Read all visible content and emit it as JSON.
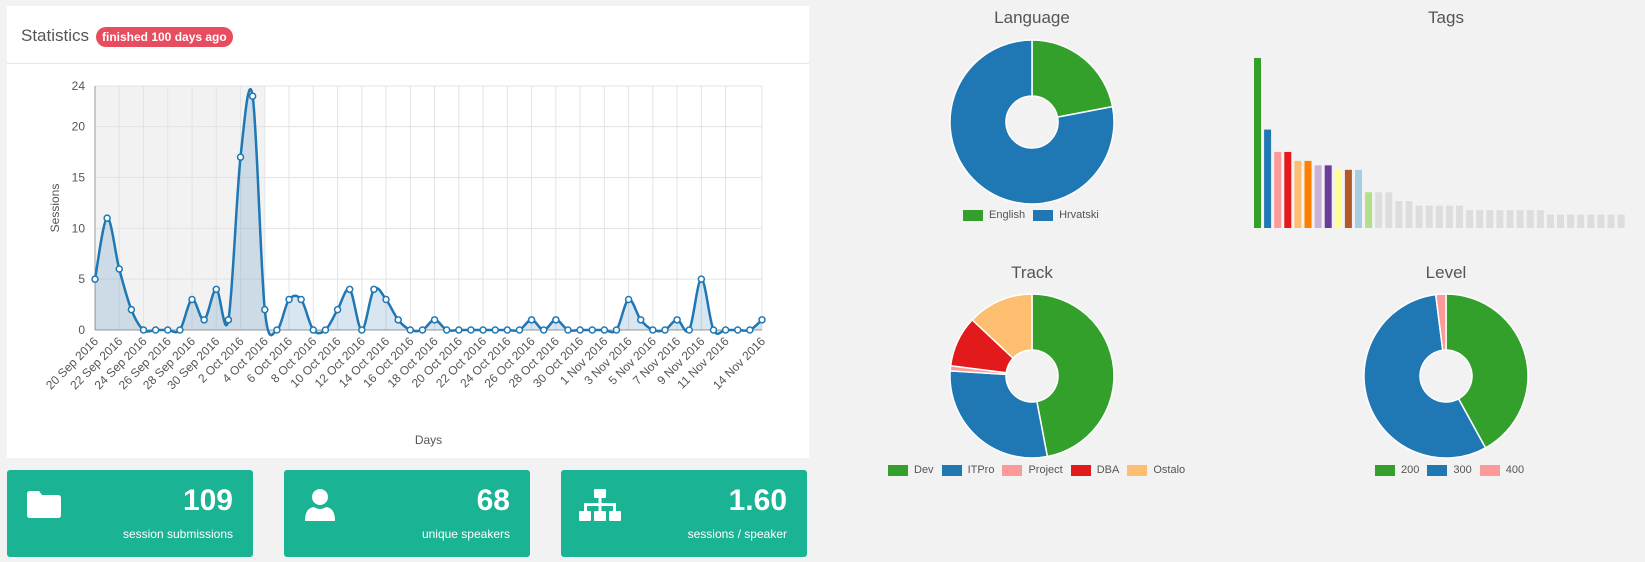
{
  "statistics": {
    "title": "Statistics",
    "badge": "finished 100 days ago",
    "chart_data": {
      "type": "line",
      "xlabel": "Days",
      "ylabel": "Sessions",
      "ylim": [
        0,
        24
      ],
      "yticks": [
        0,
        5,
        10,
        15,
        20,
        24
      ],
      "x": [
        "20 Sep 2016",
        "21 Sep 2016",
        "22 Sep 2016",
        "23 Sep 2016",
        "24 Sep 2016",
        "25 Sep 2016",
        "26 Sep 2016",
        "27 Sep 2016",
        "28 Sep 2016",
        "29 Sep 2016",
        "30 Sep 2016",
        "1 Oct 2016",
        "2 Oct 2016",
        "3 Oct 2016",
        "4 Oct 2016",
        "5 Oct 2016",
        "6 Oct 2016",
        "7 Oct 2016",
        "8 Oct 2016",
        "9 Oct 2016",
        "10 Oct 2016",
        "11 Oct 2016",
        "12 Oct 2016",
        "13 Oct 2016",
        "14 Oct 2016",
        "15 Oct 2016",
        "16 Oct 2016",
        "17 Oct 2016",
        "18 Oct 2016",
        "19 Oct 2016",
        "20 Oct 2016",
        "21 Oct 2016",
        "22 Oct 2016",
        "23 Oct 2016",
        "24 Oct 2016",
        "25 Oct 2016",
        "26 Oct 2016",
        "27 Oct 2016",
        "28 Oct 2016",
        "29 Oct 2016",
        "30 Oct 2016",
        "31 Oct 2016",
        "1 Nov 2016",
        "2 Nov 2016",
        "3 Nov 2016",
        "4 Nov 2016",
        "5 Nov 2016",
        "6 Nov 2016",
        "7 Nov 2016",
        "8 Nov 2016",
        "9 Nov 2016",
        "10 Nov 2016",
        "11 Nov 2016",
        "12 Nov 2016",
        "13 Nov 2016",
        "14 Nov 2016"
      ],
      "values": [
        5,
        11,
        6,
        2,
        0,
        0,
        0,
        0,
        3,
        1,
        4,
        1,
        17,
        23,
        2,
        0,
        3,
        3,
        0,
        0,
        2,
        4,
        0,
        4,
        3,
        1,
        0,
        0,
        1,
        0,
        0,
        0,
        0,
        0,
        0,
        0,
        1,
        0,
        1,
        0,
        0,
        0,
        0,
        0,
        3,
        1,
        0,
        0,
        1,
        0,
        5,
        0,
        0,
        0,
        0,
        1
      ],
      "tick_labels": [
        "20 Sep 2016",
        "22 Sep 2016",
        "24 Sep 2016",
        "26 Sep 2016",
        "28 Sep 2016",
        "30 Sep 2016",
        "2 Oct 2016",
        "4 Oct 2016",
        "6 Oct 2016",
        "8 Oct 2016",
        "10 Oct 2016",
        "12 Oct 2016",
        "14 Oct 2016",
        "16 Oct 2016",
        "18 Oct 2016",
        "20 Oct 2016",
        "22 Oct 2016",
        "24 Oct 2016",
        "26 Oct 2016",
        "28 Oct 2016",
        "30 Oct 2016",
        "1 Nov 2016",
        "3 Nov 2016",
        "5 Nov 2016",
        "7 Nov 2016",
        "9 Nov 2016",
        "11 Nov 2016",
        "14 Nov 2016"
      ],
      "highlight_range": [
        "20 Sep 2016",
        "4 Oct 2016"
      ],
      "line_color": "#1f77b4",
      "grid": true
    }
  },
  "stats": [
    {
      "value": "109",
      "label": "session submissions",
      "icon": "folder-icon"
    },
    {
      "value": "68",
      "label": "unique speakers",
      "icon": "user-icon"
    },
    {
      "value": "1.60",
      "label": "sessions / speaker",
      "icon": "sitemap-icon"
    }
  ],
  "language": {
    "title": "Language",
    "chart_data": {
      "type": "pie",
      "donut": true,
      "labels": [
        "English",
        "Hrvatski"
      ],
      "values": [
        22,
        78
      ],
      "colors": [
        "#33a02c",
        "#1f78b4"
      ]
    }
  },
  "tags": {
    "title": "Tags",
    "chart_data": {
      "type": "bar",
      "values": [
        38,
        22,
        17,
        17,
        15,
        15,
        14,
        14,
        13,
        13,
        13,
        8,
        8,
        8,
        6,
        6,
        5,
        5,
        5,
        5,
        5,
        4,
        4,
        4,
        4,
        4,
        4,
        4,
        4,
        3,
        3,
        3,
        3,
        3,
        3,
        3,
        3
      ],
      "colors": [
        "#33a02c",
        "#1f78b4",
        "#fb9a99",
        "#e31a1c",
        "#fdbf6f",
        "#ff7f00",
        "#cab2d6",
        "#6a3d9a",
        "#ffff99",
        "#b15928",
        "#a6cee3",
        "#b2df8a",
        "#dddddd",
        "#dddddd",
        "#dddddd",
        "#dddddd",
        "#dddddd",
        "#dddddd",
        "#dddddd",
        "#dddddd",
        "#dddddd",
        "#dddddd",
        "#dddddd",
        "#dddddd",
        "#dddddd",
        "#dddddd",
        "#dddddd",
        "#dddddd",
        "#dddddd",
        "#dddddd",
        "#dddddd",
        "#dddddd",
        "#dddddd",
        "#dddddd",
        "#dddddd",
        "#dddddd",
        "#dddddd"
      ]
    }
  },
  "track": {
    "title": "Track",
    "chart_data": {
      "type": "pie",
      "donut": true,
      "labels": [
        "Dev",
        "ITPro",
        "Project",
        "DBA",
        "Ostalo"
      ],
      "values": [
        47,
        29,
        1,
        10,
        13
      ],
      "colors": [
        "#33a02c",
        "#1f78b4",
        "#fb9a99",
        "#e31a1c",
        "#fdbf6f"
      ]
    }
  },
  "level": {
    "title": "Level",
    "chart_data": {
      "type": "pie",
      "donut": true,
      "labels": [
        "200",
        "300",
        "400"
      ],
      "values": [
        42,
        56,
        2
      ],
      "colors": [
        "#33a02c",
        "#1f78b4",
        "#fb9a99"
      ]
    }
  }
}
